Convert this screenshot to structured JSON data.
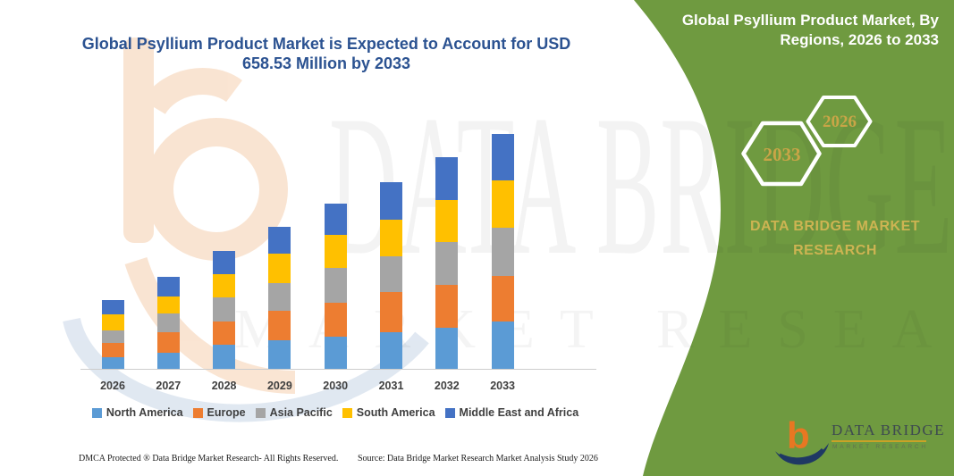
{
  "header": {
    "title_line1": "Global Psyllium Product Market is Expected to Account for USD",
    "title_line2": "658.53 Million by 2033"
  },
  "side_panel": {
    "title_line1": "Global Psyllium Product Market, By",
    "title_line2": "Regions, 2026 to 2033",
    "hexagon_back_label": "2033",
    "hexagon_front_label": "2026",
    "brand_line1": "DATA BRIDGE MARKET",
    "brand_line2": "RESEARCH",
    "background_color": "#6F9A40",
    "gold_text_color": "#CDB452"
  },
  "chart_data": {
    "type": "bar",
    "stacked": true,
    "title": "Global Psyllium Product Market is Expected to Account for USD 658.53 Million by 2033",
    "unit": "USD Million",
    "xlabel": "",
    "ylabel": "",
    "ylim": [
      0,
      700
    ],
    "gridlines": false,
    "legend_position": "bottom",
    "categories": [
      "2026",
      "2027",
      "2028",
      "2029",
      "2030",
      "2031",
      "2032",
      "2033"
    ],
    "series": [
      {
        "name": "North America",
        "color": "#5B9BD5",
        "values": [
          35,
          47,
          70,
          83,
          93,
          106,
          118,
          134
        ]
      },
      {
        "name": "Europe",
        "color": "#ED7D31",
        "values": [
          39,
          58,
          64,
          82,
          94,
          110,
          119,
          129
        ]
      },
      {
        "name": "Asia Pacific",
        "color": "#A5A5A5",
        "values": [
          37,
          53,
          67,
          78,
          97,
          102,
          120,
          133
        ]
      },
      {
        "name": "South America",
        "color": "#FFC000",
        "values": [
          44,
          48,
          66,
          80,
          92,
          102,
          116,
          133
        ]
      },
      {
        "name": "Middle East and Africa",
        "color": "#4472C4",
        "values": [
          39,
          55,
          65,
          77,
          88,
          104,
          122,
          129.53
        ]
      }
    ],
    "totals": [
      194,
      261,
      332,
      400,
      464,
      524,
      595,
      658.53
    ]
  },
  "watermark": {
    "line1": "DATA BRIDGE",
    "line2": "MARKET RESEARCH"
  },
  "footer": {
    "dmca": "DMCA Protected ® Data Bridge Market Research-  All Rights Reserved.",
    "source": "Source: Data Bridge Market Research  Market Analysis Study 2026"
  },
  "logo": {
    "name": "DATA BRIDGE",
    "subtext": "MARKET RESEARCH",
    "b_color": "#E87722",
    "swoosh_color": "#1F3864"
  }
}
